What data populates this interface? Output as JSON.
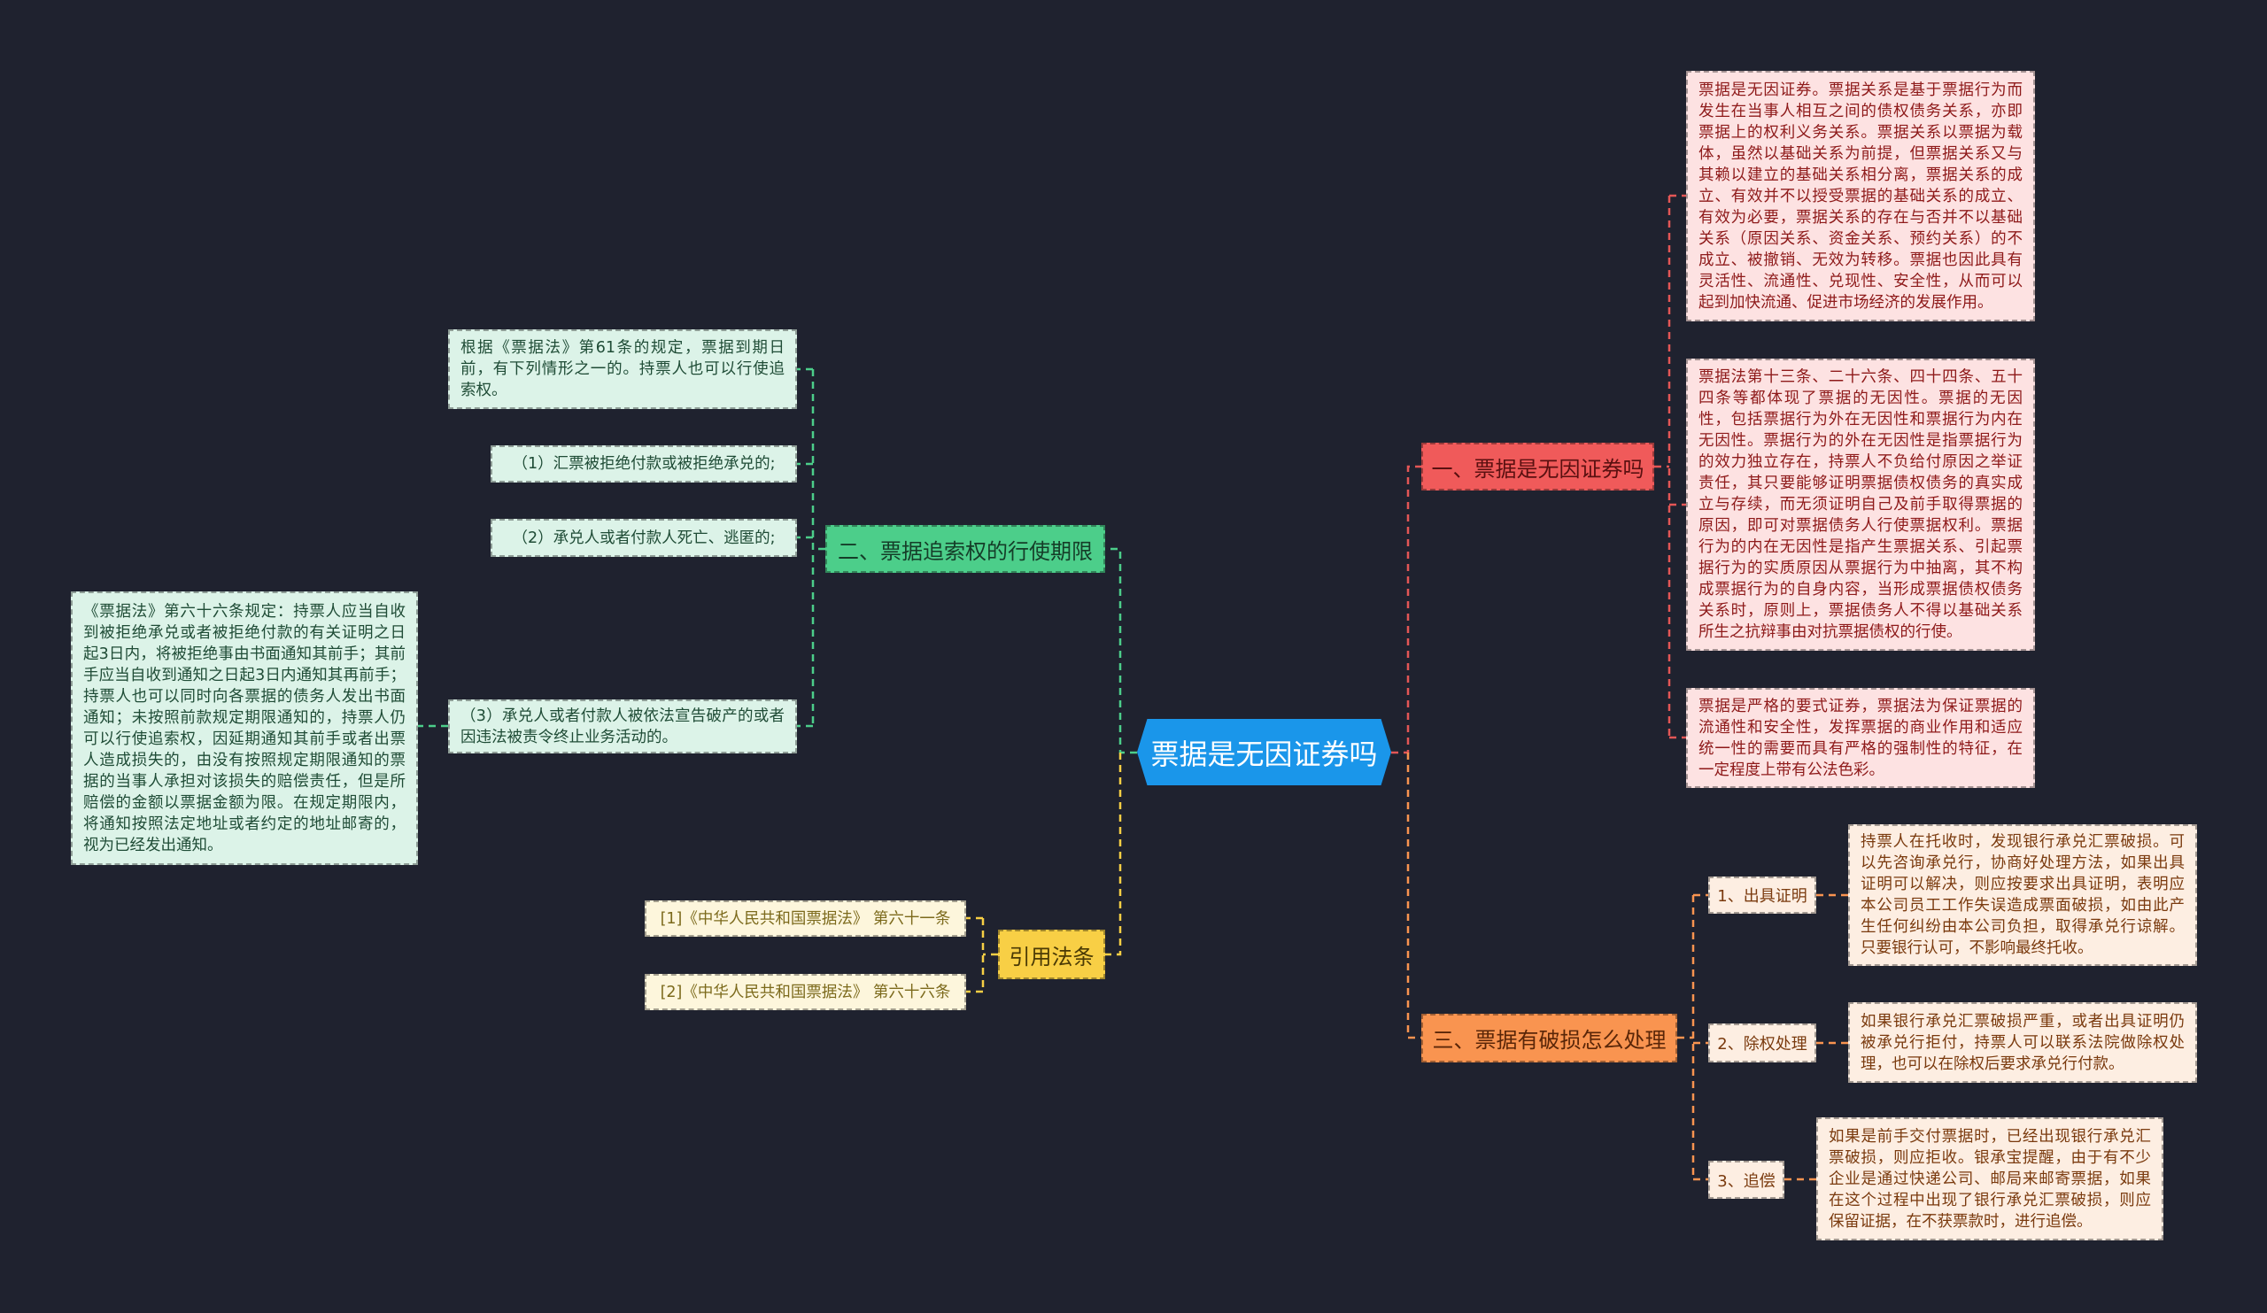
{
  "central_topic": "票据是无因证券吗",
  "colors": {
    "background": "#1f222f",
    "central": "#1a96ea",
    "branch1": "#f05a5a",
    "branch2": "#4cce8a",
    "branch3": "#f99450",
    "references": "#f8cf45"
  },
  "branch1": {
    "title": "一、票据是无因证券吗",
    "details": [
      "票据是无因证券。票据关系是基于票据行为而发生在当事人相互之间的债权债务关系，亦即票据上的权利义务关系。票据关系以票据为载体，虽然以基础关系为前提，但票据关系又与其赖以建立的基础关系相分离，票据关系的成立、有效并不以授受票据的基础关系的成立、有效为必要，票据关系的存在与否并不以基础关系（原因关系、资金关系、预约关系）的不成立、被撤销、无效为转移。票据也因此具有灵活性、流通性、兑现性、安全性，从而可以起到加快流通、促进市场经济的发展作用。",
      "票据法第十三条、二十六条、四十四条、五十四条等都体现了票据的无因性。票据的无因性，包括票据行为外在无因性和票据行为内在无因性。票据行为的外在无因性是指票据行为的效力独立存在，持票人不负给付原因之举证责任，其只要能够证明票据债权债务的真实成立与存续，而无须证明自己及前手取得票据的原因，即可对票据债务人行使票据权利。票据行为的内在无因性是指产生票据关系、引起票据行为的实质原因从票据行为中抽离，其不构成票据行为的自身内容，当形成票据债权债务关系时，原则上，票据债务人不得以基础关系所生之抗辩事由对抗票据债权的行使。",
      "票据是严格的要式证券，票据法为保证票据的流通性和安全性，发挥票据的商业作用和适应统一性的需要而具有严格的强制性的特征，在一定程度上带有公法色彩。"
    ]
  },
  "branch2": {
    "title": "二、票据追索权的行使期限",
    "items": [
      "根据《票据法》第61条的规定，票据到期日前，有下列情形之一的。持票人也可以行使追索权。",
      "（1）汇票被拒绝付款或被拒绝承兑的;",
      "（2）承兑人或者付款人死亡、逃匿的;",
      "（3）承兑人或者付款人被依法宣告破产的或者因违法被责令终止业务活动的。"
    ],
    "item3_detail": "《票据法》第六十六条规定：持票人应当自收到被拒绝承兑或者被拒绝付款的有关证明之日起3日内，将被拒绝事由书面通知其前手；其前手应当自收到通知之日起3日内通知其再前手；持票人也可以同时向各票据的债务人发出书面通知；未按照前款规定期限通知的，持票人仍可以行使追索权，因延期通知其前手或者出票人造成损失的，由没有按照规定期限通知的票据的当事人承担对该损失的赔偿责任，但是所赔偿的金额以票据金额为限。在规定期限内，将通知按照法定地址或者约定的地址邮寄的，视为已经发出通知。"
  },
  "branch3": {
    "title": "三、票据有破损怎么处理",
    "items": [
      {
        "label": "1、出具证明",
        "detail": "持票人在托收时，发现银行承兑汇票破损。可以先咨询承兑行，协商好处理方法，如果出具证明可以解决，则应按要求出具证明，表明应本公司员工工作失误造成票面破损，如由此产生任何纠纷由本公司负担，取得承兑行谅解。只要银行认可，不影响最终托收。"
      },
      {
        "label": "2、除权处理",
        "detail": "如果银行承兑汇票破损严重，或者出具证明仍被承兑行拒付，持票人可以联系法院做除权处理，也可以在除权后要求承兑行付款。"
      },
      {
        "label": "3、追偿",
        "detail": "如果是前手交付票据时，已经出现银行承兑汇票破损，则应拒收。银承宝提醒，由于有不少企业是通过快递公司、邮局来邮寄票据，如果在这个过程中出现了银行承兑汇票破损，则应保留证据，在不获票款时，进行追偿。"
      }
    ]
  },
  "references": {
    "title": "引用法条",
    "items": [
      "[1]《中华人民共和国票据法》 第六十一条",
      "[2]《中华人民共和国票据法》 第六十六条"
    ]
  }
}
